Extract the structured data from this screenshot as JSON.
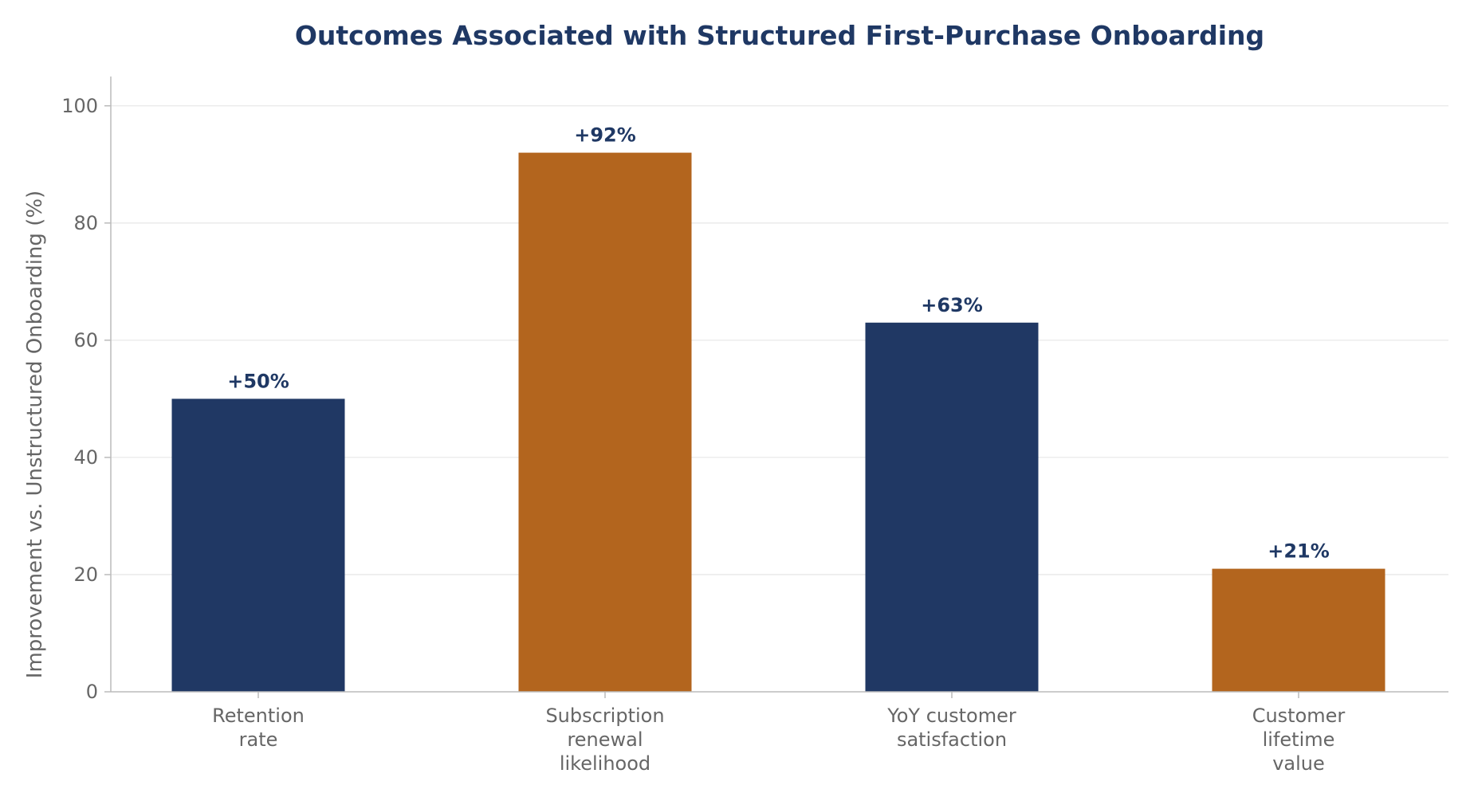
{
  "chart_data": {
    "type": "bar",
    "title": "Outcomes Associated with Structured First-Purchase Onboarding",
    "xlabel": "",
    "ylabel": "Improvement vs. Unstructured Onboarding (%)",
    "ylim": [
      0,
      105
    ],
    "yticks": [
      0,
      20,
      40,
      60,
      80,
      100
    ],
    "grid": "horizontal",
    "categories": [
      [
        "Retention",
        "rate"
      ],
      [
        "Subscription",
        "renewal",
        "likelihood"
      ],
      [
        "YoY customer",
        "satisfaction"
      ],
      [
        "Customer",
        "lifetime",
        "value"
      ]
    ],
    "values": [
      50,
      92,
      63,
      21
    ],
    "data_labels": [
      "+50%",
      "+92%",
      "+63%",
      "+21%"
    ],
    "bar_colors": [
      "#203864",
      "#b3651e",
      "#203864",
      "#b3651e"
    ]
  },
  "colors": {
    "title": "#1f3864",
    "data_label": "#1f3864",
    "axis_text": "#666666",
    "axis_line": "#bbbbbb",
    "grid": "#e8e8e8"
  }
}
